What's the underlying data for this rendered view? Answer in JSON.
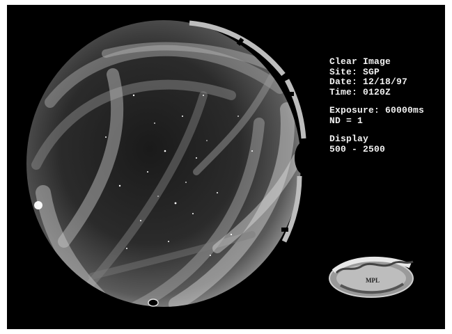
{
  "image": {
    "title": "Clear Image",
    "site": "Site: SGP",
    "date": "Date: 12/18/97",
    "time": "Time: 0120Z",
    "exposure": "Exposure: 60000ms",
    "nd": "ND = 1",
    "display_label": "Display",
    "display_range": "500 - 2500"
  },
  "logo": {
    "text": "MPL"
  },
  "colors": {
    "background": "#000000",
    "border": "#ffffff",
    "text": "#f2f2f2"
  }
}
